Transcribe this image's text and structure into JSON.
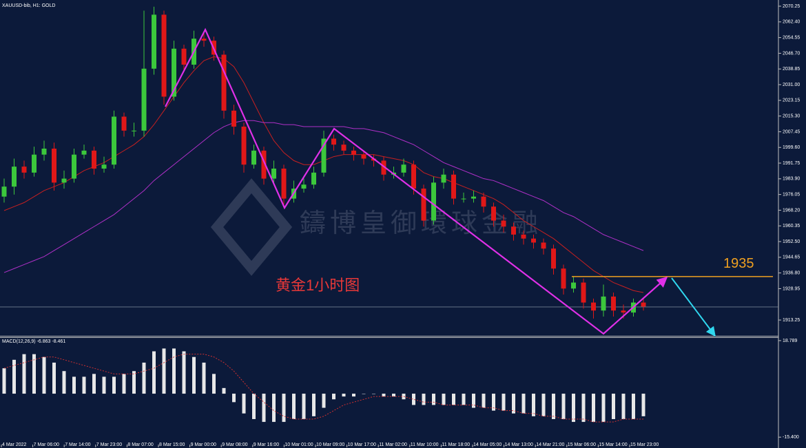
{
  "chart_data": [
    {
      "type": "candlestick",
      "title": "XAUUSD-bib, H1: GOLD",
      "annotation": "黄金1小时图",
      "watermark": "鑄博皇御環球金融",
      "level": 1935,
      "level_color": "#f0a020",
      "up_color": "#3cc83c",
      "down_color": "#e01818",
      "ylim": [
        1905.35,
        2073.35
      ],
      "yticks": [
        2070.25,
        {
          "value": 2062.4,
          "label": "2062.40"
        },
        2054.55,
        {
          "value": 2046.7,
          "label": "2046.70"
        },
        2038.85,
        {
          "value": 2031,
          "label": "2031.00"
        },
        2023.15,
        {
          "value": 2015.3,
          "label": "2015.30"
        },
        2007.45,
        {
          "value": 1999.6,
          "label": "1999.60"
        },
        1991.75,
        {
          "value": 1983.9,
          "label": "1983.90"
        },
        1976.05,
        {
          "value": 1968.2,
          "label": "1968.20"
        },
        1960.35,
        {
          "value": 1952.5,
          "label": "1952.50"
        },
        1944.65,
        {
          "value": 1936.8,
          "label": "1936.80"
        },
        1928.95,
        1913.25
      ],
      "xtick_labels": [
        "4 Mar 2022",
        "7 Mar 06:00",
        "7 Mar 14:00",
        "7 Mar 23:00",
        "8 Mar 07:00",
        "8 Mar 15:00",
        "9 Mar 00:00",
        "9 Mar 08:00",
        "9 Mar 16:00",
        "10 Mar 01:00",
        "10 Mar 09:00",
        "10 Mar 17:00",
        "11 Mar 02:00",
        "11 Mar 10:00",
        "11 Mar 18:00",
        "14 Mar 05:00",
        "14 Mar 13:00",
        "14 Mar 21:00",
        "15 Mar 06:00",
        "15 Mar 14:00",
        "15 Mar 23:00"
      ],
      "open": [
        1975,
        1980,
        1990,
        1987,
        1996,
        1999,
        1982,
        1984,
        1996,
        1998,
        1989,
        1991,
        2015,
        2008,
        2008,
        2039,
        2066,
        2025,
        2049,
        2041,
        2054,
        2053,
        2046,
        2018,
        2010,
        1991,
        1998,
        1984,
        1989,
        1974,
        1979,
        1981,
        1987,
        2004,
        2001,
        1998,
        1996,
        1994,
        1993,
        1986,
        1987,
        1991,
        1979,
        1963,
        1982,
        1986,
        1974,
        1974,
        1975,
        1970,
        1963,
        1960,
        1956,
        1954,
        1952,
        1949,
        1939,
        1929,
        1932,
        1922,
        1918,
        1925,
        1918,
        1917,
        1922
      ],
      "high": [
        1984,
        1994,
        1993,
        2000,
        2003,
        2002,
        1988,
        1999,
        2001,
        2000,
        1995,
        2018,
        2017,
        2012,
        2068,
        2070,
        2068,
        2053,
        2051,
        2058,
        2057,
        2055,
        2048,
        2021,
        2012,
        2001,
        2000,
        1993,
        1991,
        1983,
        1984,
        1990,
        2008,
        2006,
        2003,
        2000,
        1998,
        1996,
        1995,
        1990,
        1994,
        1993,
        1981,
        1985,
        1989,
        1988,
        1977,
        1978,
        1977,
        1972,
        1966,
        1962,
        1958,
        1956,
        1954,
        1951,
        1941,
        1935,
        1934,
        1924,
        1931,
        1927,
        1921,
        1924,
        1924
      ],
      "low": [
        1972,
        1976,
        1984,
        1985,
        1993,
        1978,
        1979,
        1982,
        1994,
        1986,
        1987,
        1989,
        2005,
        2005,
        2005,
        2036,
        2021,
        2023,
        2038,
        2039,
        2050,
        2043,
        2014,
        2006,
        1987,
        1989,
        1981,
        1982,
        1971,
        1972,
        1977,
        1979,
        1985,
        1998,
        1996,
        1993,
        1991,
        1990,
        1983,
        1984,
        1985,
        1976,
        1960,
        1961,
        1979,
        1971,
        1972,
        1972,
        1967,
        1960,
        1957,
        1953,
        1951,
        1949,
        1946,
        1936,
        1926,
        1927,
        1919,
        1914,
        1915,
        1915,
        1914,
        1915,
        1918
      ],
      "close": [
        1980,
        1990,
        1987,
        1996,
        1999,
        1982,
        1984,
        1996,
        1998,
        1989,
        1991,
        2015,
        2008,
        2008,
        2039,
        2066,
        2025,
        2049,
        2041,
        2054,
        2053,
        2046,
        2018,
        2010,
        1991,
        1998,
        1984,
        1989,
        1974,
        1979,
        1981,
        1987,
        2004,
        2001,
        1998,
        1996,
        1994,
        1993,
        1986,
        1987,
        1991,
        1979,
        1963,
        1982,
        1986,
        1974,
        1974,
        1975,
        1970,
        1963,
        1960,
        1956,
        1954,
        1952,
        1949,
        1939,
        1929,
        1932,
        1922,
        1918,
        1925,
        1918,
        1917,
        1922,
        1920
      ],
      "overlays": [
        {
          "color": "#c82020",
          "values": [
            1968,
            1970,
            1972,
            1975,
            1978,
            1980,
            1982,
            1985,
            1988,
            1990,
            1992,
            1995,
            1998,
            2001,
            2005,
            2011,
            2018,
            2025,
            2032,
            2038,
            2043,
            2045,
            2044,
            2040,
            2032,
            2022,
            2012,
            2003,
            1997,
            1993,
            1991,
            1991,
            1993,
            1995,
            1996,
            1996,
            1996,
            1996,
            1995,
            1994,
            1993,
            1991,
            1987,
            1985,
            1984,
            1982,
            1980,
            1978,
            1976,
            1974,
            1971,
            1967,
            1963,
            1960,
            1957,
            1954,
            1950,
            1946,
            1942,
            1938,
            1935,
            1932,
            1930,
            1928,
            1927
          ]
        },
        {
          "color": "#b030c8",
          "values": [
            1937,
            1939,
            1941,
            1943,
            1945,
            1948,
            1951,
            1954,
            1957,
            1960,
            1963,
            1966,
            1970,
            1974,
            1978,
            1983,
            1987,
            1991,
            1995,
            1999,
            2003,
            2007,
            2010,
            2012,
            2013,
            2013,
            2012,
            2012,
            2011,
            2011,
            2010,
            2010,
            2010,
            2010,
            2010,
            2009,
            2009,
            2008,
            2007,
            2005,
            2003,
            2001,
            1998,
            1995,
            1992,
            1990,
            1988,
            1986,
            1984,
            1983,
            1981,
            1979,
            1977,
            1975,
            1973,
            1970,
            1967,
            1965,
            1962,
            1959,
            1956,
            1954,
            1952,
            1950,
            1948
          ]
        }
      ]
    },
    {
      "type": "bar",
      "title": "MACD(12,26,9) -6.863 -8.461",
      "color": "#e8e8e8",
      "ylim": [
        -19.0,
        20.0
      ],
      "yticks": [
        18.789,
        {
          "value": -15.4,
          "label": "-15.400"
        }
      ],
      "values": [
        9,
        12,
        14,
        14,
        13,
        11,
        8,
        6,
        6,
        7,
        6,
        6,
        7,
        8,
        11,
        15,
        16,
        16,
        15,
        13,
        11,
        7,
        2,
        -3,
        -7,
        -9,
        -10,
        -10,
        -10,
        -9,
        -9,
        -8,
        -5,
        -2,
        -1,
        -1,
        0,
        0,
        -1,
        -1,
        -2,
        -4,
        -4,
        -4,
        -4,
        -4,
        -4,
        -5,
        -5,
        -6,
        -6,
        -7,
        -7,
        -8,
        -8,
        -9,
        -9,
        -10,
        -10,
        -10,
        -10,
        -9,
        -9,
        -9,
        -8
      ],
      "signal": {
        "color": "#d03030",
        "values": [
          9,
          10,
          11,
          12,
          13,
          13,
          12,
          11,
          10,
          9,
          8,
          7,
          7,
          7,
          8,
          9,
          11,
          13,
          14,
          14,
          14,
          13,
          11,
          8,
          4,
          0,
          -3,
          -6,
          -8,
          -9,
          -9,
          -9,
          -8,
          -6,
          -4,
          -3,
          -2,
          -1,
          -1,
          -1,
          -1,
          -2,
          -3,
          -3,
          -4,
          -4,
          -4,
          -4,
          -5,
          -5,
          -6,
          -6,
          -7,
          -7,
          -8,
          -8,
          -9,
          -9,
          -9,
          -10,
          -10,
          -10,
          -9,
          -9,
          -9
        ]
      }
    }
  ]
}
